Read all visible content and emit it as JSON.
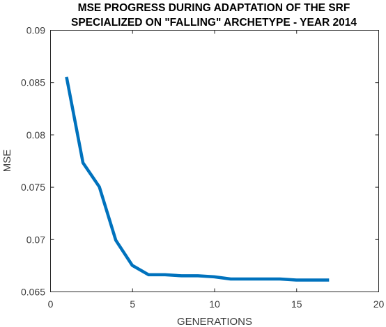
{
  "chart_data": {
    "type": "line",
    "title_lines": [
      "MSE PROGRESS DURING ADAPTATION OF THE SRF",
      "SPECIALIZED  ON \"FALLING\" ARCHETYPE - YEAR 2014"
    ],
    "xlabel": "GENERATIONS",
    "ylabel": "MSE",
    "xlim": [
      0,
      20
    ],
    "ylim": [
      0.065,
      0.09
    ],
    "x_ticks": [
      "0",
      "5",
      "10",
      "15",
      "20"
    ],
    "y_ticks": [
      "0.065",
      "0.07",
      "0.075",
      "0.08",
      "0.085",
      "0.09"
    ],
    "grid": false,
    "series": [
      {
        "color": "#0072BD",
        "x": [
          1,
          2,
          3,
          4,
          5,
          6,
          7,
          8,
          9,
          10,
          11,
          12,
          13,
          14,
          15,
          16,
          17
        ],
        "y": [
          0.0855,
          0.0773,
          0.075,
          0.0699,
          0.0675,
          0.0666,
          0.0666,
          0.0665,
          0.0665,
          0.0664,
          0.0662,
          0.0662,
          0.0662,
          0.0662,
          0.0661,
          0.0661,
          0.0661
        ]
      }
    ]
  }
}
